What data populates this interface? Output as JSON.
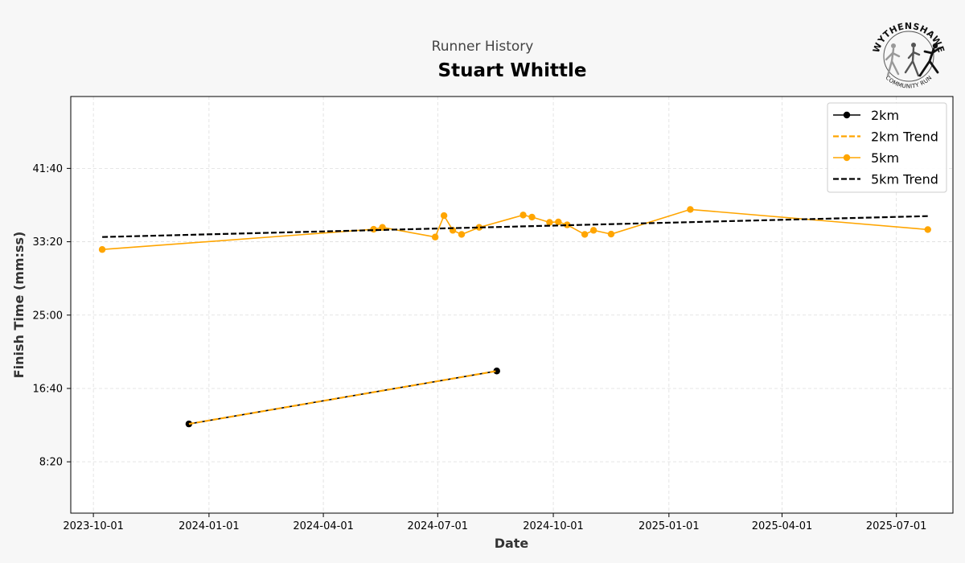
{
  "chart_data": {
    "type": "line",
    "subtitle": "Runner History",
    "title": "Stuart Whittle",
    "xlabel": "Date",
    "ylabel": "Finish Time (mm:ss)",
    "x_ticks": [
      "2023-10-01",
      "2024-01-01",
      "2024-04-01",
      "2024-07-01",
      "2024-10-01",
      "2025-01-01",
      "2025-04-01",
      "2025-07-01"
    ],
    "y_ticks": [
      "8:20",
      "16:40",
      "25:00",
      "33:20",
      "41:40"
    ],
    "x_range": [
      "2023-09-13",
      "2025-08-15"
    ],
    "y_range_seconds": [
      150,
      2990
    ],
    "grid": true,
    "legend_position": "top-right",
    "series": [
      {
        "name": "2km",
        "style": "solid-marker",
        "color": "#000000",
        "points": [
          {
            "date": "2023-12-16",
            "time": "12:38"
          },
          {
            "date": "2024-08-17",
            "time": "18:39"
          }
        ]
      },
      {
        "name": "2km Trend",
        "style": "dashed",
        "color": "#ffa500",
        "points": [
          {
            "date": "2023-12-16",
            "time": "12:38"
          },
          {
            "date": "2024-08-17",
            "time": "18:39"
          }
        ]
      },
      {
        "name": "5km",
        "style": "solid-marker",
        "color": "#ffa500",
        "points": [
          {
            "date": "2023-10-08",
            "time": "32:27"
          },
          {
            "date": "2024-05-11",
            "time": "34:45"
          },
          {
            "date": "2024-05-18",
            "time": "34:58"
          },
          {
            "date": "2024-06-29",
            "time": "33:52"
          },
          {
            "date": "2024-07-06",
            "time": "36:18"
          },
          {
            "date": "2024-07-13",
            "time": "34:38"
          },
          {
            "date": "2024-07-20",
            "time": "34:10"
          },
          {
            "date": "2024-08-03",
            "time": "34:58"
          },
          {
            "date": "2024-09-07",
            "time": "36:22"
          },
          {
            "date": "2024-09-14",
            "time": "36:08"
          },
          {
            "date": "2024-09-28",
            "time": "35:32"
          },
          {
            "date": "2024-10-05",
            "time": "35:35"
          },
          {
            "date": "2024-10-12",
            "time": "35:15"
          },
          {
            "date": "2024-10-26",
            "time": "34:10"
          },
          {
            "date": "2024-11-02",
            "time": "34:38"
          },
          {
            "date": "2024-11-16",
            "time": "34:12"
          },
          {
            "date": "2025-01-18",
            "time": "37:00"
          },
          {
            "date": "2025-07-26",
            "time": "34:43"
          }
        ]
      },
      {
        "name": "5km Trend",
        "style": "dashed",
        "color": "#000000",
        "points": [
          {
            "date": "2023-10-08",
            "time": "33:52"
          },
          {
            "date": "2025-07-26",
            "time": "36:15"
          }
        ]
      }
    ]
  },
  "logo": {
    "top_text": "WYTHENSHAWE",
    "bottom_text": "COMMUNITY RUN"
  }
}
